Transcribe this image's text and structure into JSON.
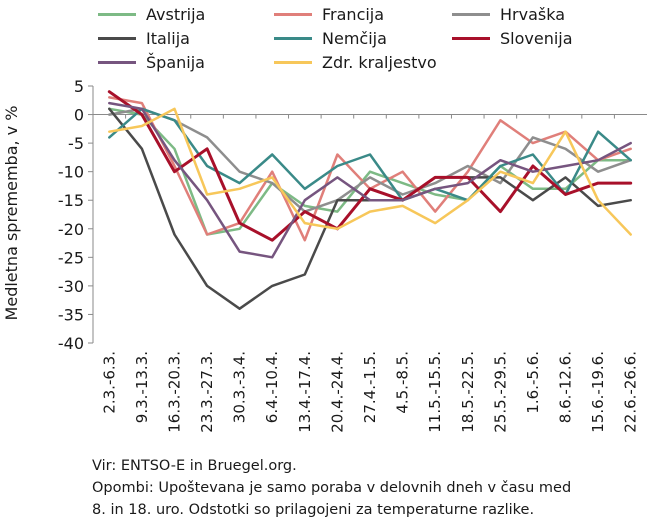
{
  "chart_data": {
    "type": "line",
    "ylabel": "Medletna sprememba, v %",
    "ylim": [
      -40,
      5
    ],
    "yticks": [
      5,
      0,
      -5,
      -10,
      -15,
      -20,
      -25,
      -30,
      -35,
      -40
    ],
    "grid": false,
    "legend_position": "top",
    "categories": [
      "2.3.-6.3.",
      "9.3.-13.3.",
      "16.3.-20.3.",
      "23.3.-27.3.",
      "30.3.-3.4.",
      "6.4.-10.4.",
      "13.4.-17.4.",
      "20.4.-24.4.",
      "27.4.-1.5.",
      "4.5.-8.5.",
      "11.5.-15.5.",
      "18.5.-22.5.",
      "25.5.-29.5.",
      "1.6.-5.6.",
      "8.6.-12.6.",
      "15.6.-19.6.",
      "22.6.-26.6."
    ],
    "series": [
      {
        "name": "Avstrija",
        "color": "#7dba85",
        "values": [
          1,
          0,
          -6,
          -21,
          -20,
          -12,
          -16,
          -17,
          -10,
          -12,
          -14,
          -15,
          -9,
          -13,
          -13,
          -8,
          -8
        ]
      },
      {
        "name": "Francija",
        "color": "#e07f7a",
        "values": [
          3,
          2,
          -9,
          -21,
          -19,
          -10,
          -22,
          -7,
          -13,
          -10,
          -17,
          -10,
          -1,
          -5,
          -3,
          -8,
          -6
        ]
      },
      {
        "name": "Hrvaška",
        "color": "#8e8e8e",
        "values": [
          0,
          1,
          -1,
          -4,
          -10,
          -12,
          -17,
          -15,
          -11,
          -14,
          -12,
          -9,
          -12,
          -4,
          -6,
          -10,
          -8
        ]
      },
      {
        "name": "Italija",
        "color": "#4a4a4a",
        "values": [
          1,
          -6,
          -21,
          -30,
          -34,
          -30,
          -28,
          -15,
          -15,
          -15,
          -11,
          -11,
          -11,
          -15,
          -11,
          -16,
          -15
        ]
      },
      {
        "name": "Nemčija",
        "color": "#3a8a88",
        "values": [
          -4,
          1,
          -1,
          -9,
          -12,
          -7,
          -13,
          -9,
          -7,
          -15,
          -13,
          -15,
          -9,
          -7,
          -14,
          -3,
          -8
        ]
      },
      {
        "name": "Slovenija",
        "color": "#a8102a",
        "values": [
          4,
          0,
          -10,
          -6,
          -19,
          -22,
          -17,
          -20,
          -13,
          -15,
          -11,
          -11,
          -17,
          -9,
          -14,
          -12,
          -12
        ]
      },
      {
        "name": "Španija",
        "color": "#76557f",
        "values": [
          2,
          1,
          -8,
          -15,
          -24,
          -25,
          -15,
          -11,
          -15,
          -15,
          -13,
          -12,
          -8,
          -10,
          -9,
          -8,
          -5
        ]
      },
      {
        "name": "Zdr. kraljestvo",
        "color": "#f7c75a",
        "values": [
          -3,
          -2,
          1,
          -14,
          -13,
          -11,
          -19,
          -20,
          -17,
          -16,
          -19,
          -15,
          -10,
          -12,
          -3,
          -15,
          -21
        ]
      }
    ]
  },
  "notes": {
    "source": "Vir: ENTSO-E in Bruegel.org.",
    "line1": "Opombi: Upoštevana je samo poraba v delovnih dneh v času med",
    "line2": "8. in 18. uro. Odstotki so prilagojeni za temperaturne razlike."
  }
}
